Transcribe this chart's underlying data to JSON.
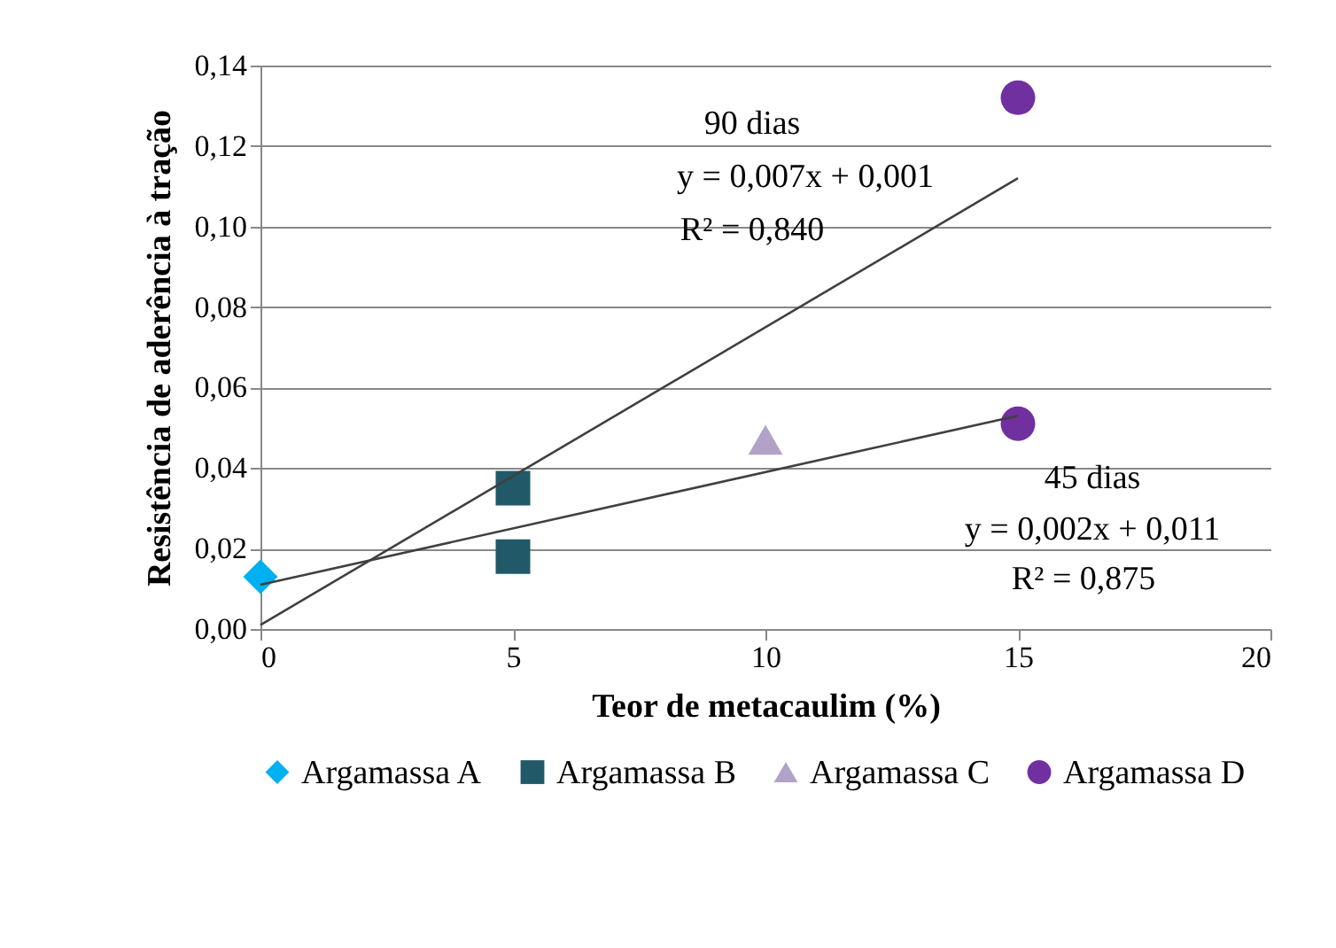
{
  "chart_data": {
    "type": "scatter",
    "xlabel": "Teor de metacaulim (%)",
    "ylabel": "Resistência de aderência à tração",
    "xlim": [
      0,
      20
    ],
    "xticks": [
      0,
      5,
      10,
      15,
      20
    ],
    "ylim": [
      0,
      0.14
    ],
    "yticks": [
      {
        "value": 0,
        "label": "0,00"
      },
      {
        "value": 0.02,
        "label": "0,02"
      },
      {
        "value": 0.04,
        "label": "0,04"
      },
      {
        "value": 0.06,
        "label": "0,06"
      },
      {
        "value": 0.08,
        "label": "0,08"
      },
      {
        "value": 0.1,
        "label": "0,10"
      },
      {
        "value": 0.12,
        "label": "0,12"
      },
      {
        "value": 0.14,
        "label": "0,14"
      }
    ],
    "grid": "y",
    "legend": "bottom",
    "series": [
      {
        "name": "Argamassa A",
        "color": "#00b0f0",
        "marker": "diamond",
        "x": [
          0
        ],
        "values": [
          0.013
        ]
      },
      {
        "name": "Argamassa B",
        "color": "#215968",
        "marker": "square",
        "x": [
          5,
          5
        ],
        "values": [
          0.035,
          0.018
        ]
      },
      {
        "name": "Argamassa C",
        "color": "#b3a2c7",
        "marker": "triangle",
        "x": [
          10
        ],
        "values": [
          0.047
        ]
      },
      {
        "name": "Argamassa D",
        "color": "#7030a0",
        "marker": "circle",
        "x": [
          15,
          15
        ],
        "values": [
          0.132,
          0.051
        ]
      },
      {
        "type": "line",
        "color": "#404040",
        "x": [
          0,
          15
        ],
        "values": [
          0.001,
          0.112
        ]
      },
      {
        "type": "line",
        "color": "#404040",
        "x": [
          0,
          15
        ],
        "values": [
          0.011,
          0.053
        ]
      }
    ],
    "annotations": [
      "90 dias",
      "y = 0,007x + 0,001",
      "R² = 0,840",
      "45 dias",
      "y = 0,002x + 0,011",
      "R² = 0,875"
    ]
  }
}
